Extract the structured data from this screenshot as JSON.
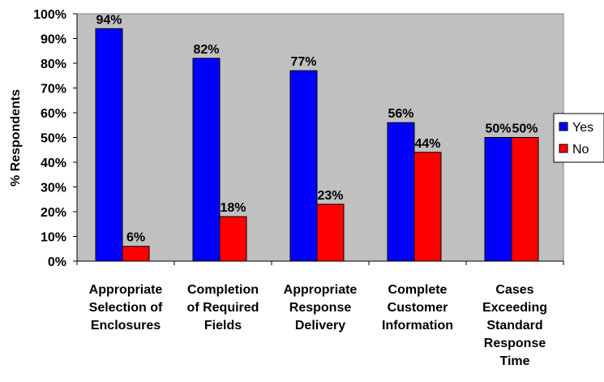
{
  "chart_data": {
    "type": "bar",
    "title": "",
    "xlabel": "",
    "ylabel": "% Respondents",
    "ylim": [
      0,
      100
    ],
    "yticks": [
      "0%",
      "10%",
      "20%",
      "30%",
      "40%",
      "50%",
      "60%",
      "70%",
      "80%",
      "90%",
      "100%"
    ],
    "categories": [
      [
        "Appropriate",
        "Selection of",
        "Enclosures"
      ],
      [
        "Completion",
        "of Required",
        "Fields"
      ],
      [
        "Appropriate",
        "Response",
        "Delivery"
      ],
      [
        "Complete",
        "Customer",
        "Information"
      ],
      [
        "Cases",
        "Exceeding",
        "Standard",
        "Response",
        "Time"
      ]
    ],
    "series": [
      {
        "name": "Yes",
        "color": "#0000FF",
        "values": [
          94,
          82,
          77,
          56,
          50
        ]
      },
      {
        "name": "No",
        "color": "#FF0000",
        "values": [
          6,
          18,
          23,
          44,
          50
        ]
      }
    ],
    "value_suffix": "%",
    "plot_background": "#C0C0C0",
    "grid": false,
    "legend_position": "right"
  }
}
